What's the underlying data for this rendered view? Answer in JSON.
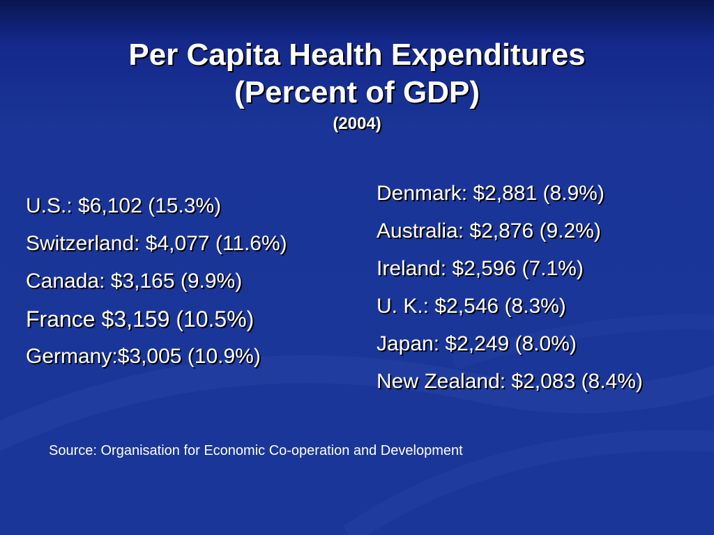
{
  "slide": {
    "title_line1": "Per Capita Health Expenditures",
    "title_line2": "(Percent of GDP)",
    "subtitle": "(2004)",
    "left_items": [
      "U.S.: $6,102 (15.3%)",
      "Switzerland: $4,077 (11.6%)",
      "Canada: $3,165 (9.9%)",
      "France $3,159 (10.5%)",
      "Germany:$3,005 (10.9%)"
    ],
    "right_items": [
      "Denmark: $2,881 (8.9%)",
      "Australia: $2,876 (9.2%)",
      "Ireland: $2,596 (7.1%)",
      "U. K.: $2,546 (8.3%)",
      "Japan: $2,249 (8.0%)",
      "New Zealand: $2,083 (8.4%)"
    ],
    "source": "Source: Organisation for Economic Co-operation and Development"
  },
  "colors": {
    "background": "#1a3596",
    "text": "#ffffff",
    "shadow": "#000000"
  }
}
